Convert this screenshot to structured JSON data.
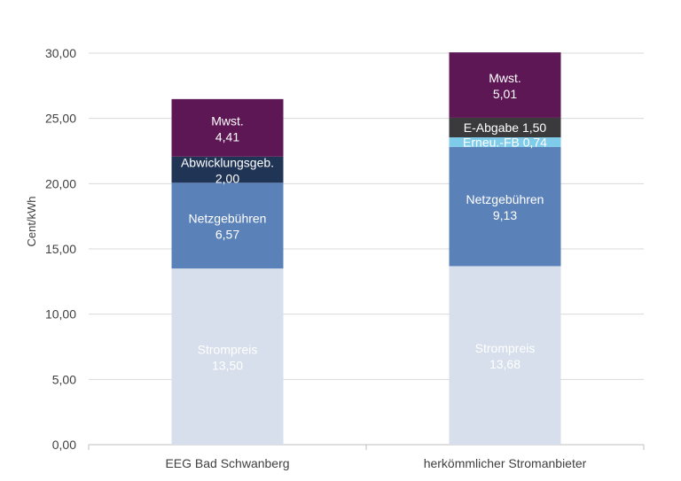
{
  "chart_data": {
    "type": "bar",
    "stacked": true,
    "ylabel": "Cent/kWh",
    "ylim": [
      0,
      30
    ],
    "yticks": [
      "0,00",
      "5,00",
      "10,00",
      "15,00",
      "20,00",
      "25,00",
      "30,00"
    ],
    "grid": true,
    "categories": [
      "EEG Bad Schwanberg",
      "herkömmlicher Stromanbieter"
    ],
    "bars": [
      {
        "category": "EEG Bad Schwanberg",
        "segments": [
          {
            "name": "Strompreis",
            "value": 13.5,
            "label": "Strompreis",
            "value_label": "13,50",
            "color": "#d6dfeb",
            "text_color": "#ffffff"
          },
          {
            "name": "Netzgebühren",
            "value": 6.57,
            "label": "Netzgebühren",
            "value_label": "6,57",
            "color": "#5b82b8",
            "text_color": "#ffffff"
          },
          {
            "name": "Abwicklungsgeb.",
            "value": 2.0,
            "label": "Abwicklungsgeb.",
            "value_label": "2,00",
            "color": "#203456",
            "text_color": "#ffffff"
          },
          {
            "name": "Mwst.",
            "value": 4.41,
            "label": "Mwst.",
            "value_label": "4,41",
            "color": "#5c1754",
            "text_color": "#ffffff"
          }
        ]
      },
      {
        "category": "herkömmlicher Stromanbieter",
        "segments": [
          {
            "name": "Strompreis",
            "value": 13.68,
            "label": "Strompreis",
            "value_label": "13,68",
            "color": "#d6dfeb",
            "text_color": "#ffffff"
          },
          {
            "name": "Netzgebühren",
            "value": 9.13,
            "label": "Netzgebühren",
            "value_label": "9,13",
            "color": "#5b82b8",
            "text_color": "#ffffff"
          },
          {
            "name": "Erneu.-FB",
            "value": 0.74,
            "label": "Erneu.-FB 0,74",
            "color": "#7ecbea",
            "text_color": "#ffffff"
          },
          {
            "name": "E-Abgabe",
            "value": 1.5,
            "label": "E-Abgabe 1,50",
            "color": "#3a3a3c",
            "text_color": "#ffffff"
          },
          {
            "name": "Mwst.",
            "value": 5.01,
            "label": "Mwst.",
            "value_label": "5,01",
            "color": "#5c1754",
            "text_color": "#ffffff"
          }
        ]
      }
    ],
    "colors": {
      "grid": "#d9d9d9",
      "axis": "#bfbfbf",
      "text": "#404040"
    }
  }
}
